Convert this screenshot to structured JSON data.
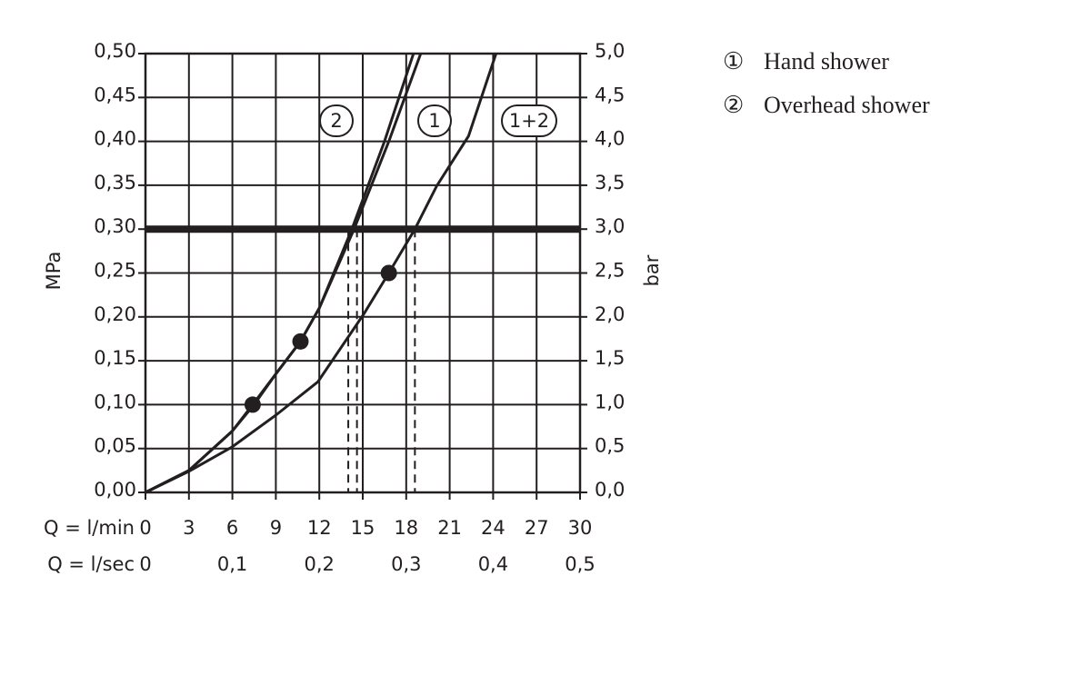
{
  "chart_data": {
    "type": "line",
    "xlabel": "Q = l/min",
    "x2label": "Q = l/sec",
    "ylabel": "MPa",
    "y2label": "bar",
    "xlim": [
      0,
      30
    ],
    "xticks": [
      0,
      3,
      6,
      9,
      12,
      15,
      18,
      21,
      24,
      27,
      30
    ],
    "x2lim": [
      0,
      0.5
    ],
    "x2ticks": [
      0,
      {
        "value": 0.1,
        "label": "0,1"
      },
      {
        "value": 0.2,
        "label": "0,2"
      },
      {
        "value": 0.3,
        "label": "0,3"
      },
      {
        "value": 0.4,
        "label": "0,4"
      },
      {
        "value": 0.5,
        "label": "0,5"
      }
    ],
    "ylim": [
      0,
      0.5
    ],
    "yticks": [
      {
        "value": 0,
        "label": "0,00"
      },
      {
        "value": 0.05,
        "label": "0,05"
      },
      {
        "value": 0.1,
        "label": "0,10"
      },
      {
        "value": 0.15,
        "label": "0,15"
      },
      {
        "value": 0.2,
        "label": "0,20"
      },
      {
        "value": 0.25,
        "label": "0,25"
      },
      {
        "value": 0.3,
        "label": "0,30"
      },
      {
        "value": 0.35,
        "label": "0,35"
      },
      {
        "value": 0.4,
        "label": "0,40"
      },
      {
        "value": 0.45,
        "label": "0,45"
      },
      {
        "value": 0.5,
        "label": "0,50"
      }
    ],
    "y2lim": [
      0,
      5
    ],
    "y2ticks": [
      {
        "value": 0,
        "label": "0,0"
      },
      {
        "value": 0.5,
        "label": "0,5"
      },
      {
        "value": 1,
        "label": "1,0"
      },
      {
        "value": 1.5,
        "label": "1,5"
      },
      {
        "value": 2,
        "label": "2,0"
      },
      {
        "value": 2.5,
        "label": "2,5"
      },
      {
        "value": 3,
        "label": "3,0"
      },
      {
        "value": 3.5,
        "label": "3,5"
      },
      {
        "value": 4,
        "label": "4,0"
      },
      {
        "value": 4.5,
        "label": "4,5"
      },
      {
        "value": 5,
        "label": "5,0"
      }
    ],
    "grid": true,
    "series": [
      {
        "name": "2",
        "color": "#231f20",
        "x": [
          0,
          3,
          6,
          7.4,
          9,
          10.7,
          12,
          14.25,
          16.5,
          18.5
        ],
        "values": [
          0,
          0.025,
          0.07,
          0.1,
          0.135,
          0.172,
          0.21,
          0.3,
          0.4,
          0.5
        ]
      },
      {
        "name": "1",
        "color": "#231f20",
        "x": [
          0,
          3,
          6,
          7.5,
          9,
          10.7,
          12,
          14.4,
          16.8,
          19.0
        ],
        "values": [
          0,
          0.025,
          0.07,
          0.1,
          0.135,
          0.172,
          0.21,
          0.3,
          0.4,
          0.5
        ]
      },
      {
        "name": "1+2",
        "color": "#231f20",
        "x": [
          0,
          3,
          6,
          9,
          11.9,
          15.1,
          16.8,
          18.6,
          20.1,
          22.3,
          24.2
        ],
        "values": [
          0,
          0.024,
          0.052,
          0.088,
          0.126,
          0.204,
          0.25,
          0.3,
          0.349,
          0.406,
          0.5
        ]
      }
    ],
    "markers": {
      "x": [
        7.4,
        10.7,
        16.8
      ],
      "values": [
        0.1,
        0.172,
        0.25
      ]
    },
    "reference_line": 0.3,
    "drop_lines": [
      14.0,
      14.6,
      18.6
    ],
    "legend": [
      {
        "symbol": "①",
        "label": "Hand shower"
      },
      {
        "symbol": "②",
        "label": "Overhead shower"
      }
    ]
  }
}
